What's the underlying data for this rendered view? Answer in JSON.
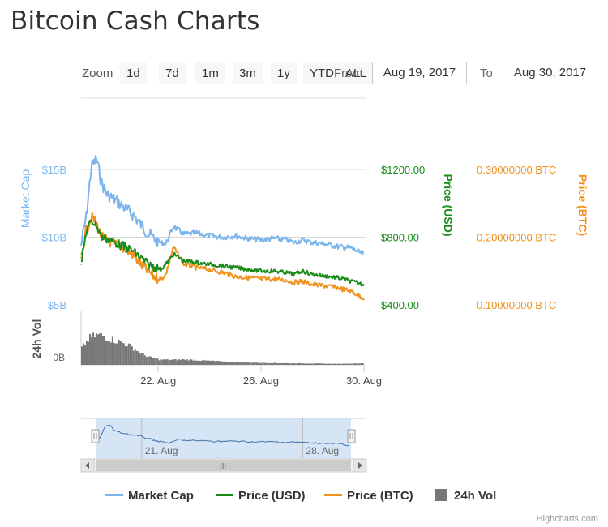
{
  "title": "Bitcoin Cash Charts",
  "range_selector": {
    "zoom_label": "Zoom",
    "buttons": [
      "1d",
      "7d",
      "1m",
      "3m",
      "1y",
      "YTD",
      "ALL"
    ],
    "from_label": "From",
    "from_value": "Aug 19, 2017",
    "to_label": "To",
    "to_value": "Aug 30, 2017"
  },
  "colors": {
    "market_cap": "#7cb5ec",
    "price_usd": "#1a8c1a",
    "price_btc": "#f0921d",
    "volume": "#777777",
    "grid": "#d8d8d8",
    "navigator_mask": "#cfe0f3"
  },
  "chart_data": {
    "type": "line",
    "title": "Bitcoin Cash Charts",
    "x_range": [
      "Aug 19, 2017",
      "Aug 30, 2017"
    ],
    "x_tick_labels": [
      "22. Aug",
      "26. Aug",
      "30. Aug"
    ],
    "x_ticks": [
      22,
      26,
      30
    ],
    "axes": {
      "market_cap": {
        "label": "Market Cap",
        "ticks": [
          "$5B",
          "$10B",
          "$15B"
        ],
        "tick_values": [
          5,
          10,
          15
        ],
        "unit": "B USD",
        "range": [
          5,
          15
        ]
      },
      "price_usd": {
        "label": "Price (USD)",
        "ticks": [
          "$400.00",
          "$800.00",
          "$1200.00"
        ],
        "tick_values": [
          400,
          800,
          1200
        ],
        "range": [
          400,
          1200
        ]
      },
      "price_btc": {
        "label": "Price (BTC)",
        "ticks": [
          "0.10000000 BTC",
          "0.20000000 BTC",
          "0.30000000 BTC"
        ],
        "tick_values": [
          0.1,
          0.2,
          0.3
        ],
        "range": [
          0.1,
          0.3
        ]
      },
      "volume": {
        "label": "24h Vol",
        "ticks": [
          "0B"
        ]
      }
    },
    "grid": true,
    "legend_position": "bottom",
    "series": [
      {
        "name": "Market Cap",
        "axis": "market_cap",
        "x": [
          19.0,
          19.2,
          19.4,
          19.6,
          19.8,
          20.0,
          20.3,
          20.6,
          21.0,
          21.3,
          21.6,
          21.9,
          22.1,
          22.3,
          22.6,
          23.0,
          23.5,
          24.0,
          24.5,
          25.0,
          25.5,
          26.0,
          26.5,
          27.0,
          27.3,
          27.6,
          28.0,
          28.5,
          29.0,
          29.5,
          30.0
        ],
        "values": [
          9.4,
          11.5,
          15.2,
          15.8,
          14.0,
          13.2,
          12.8,
          12.3,
          11.7,
          11.0,
          10.3,
          9.8,
          9.6,
          9.5,
          10.8,
          10.2,
          10.3,
          10.1,
          10.0,
          10.1,
          9.9,
          9.8,
          9.9,
          9.8,
          9.6,
          9.8,
          9.6,
          9.5,
          9.3,
          9.2,
          8.7
        ]
      },
      {
        "name": "Price (USD)",
        "axis": "price_usd",
        "x": [
          19.0,
          19.2,
          19.4,
          19.6,
          19.8,
          20.0,
          20.3,
          20.6,
          21.0,
          21.3,
          21.6,
          21.9,
          22.1,
          22.3,
          22.6,
          23.0,
          23.5,
          24.0,
          24.5,
          25.0,
          25.5,
          26.0,
          26.5,
          27.0,
          27.3,
          27.6,
          28.0,
          28.5,
          29.0,
          29.5,
          30.0
        ],
        "values": [
          640,
          830,
          900,
          870,
          800,
          790,
          770,
          750,
          720,
          680,
          640,
          620,
          610,
          640,
          700,
          660,
          650,
          640,
          630,
          620,
          610,
          600,
          600,
          590,
          580,
          600,
          580,
          570,
          560,
          540,
          520
        ]
      },
      {
        "name": "Price (BTC)",
        "axis": "price_btc",
        "x": [
          19.0,
          19.2,
          19.4,
          19.6,
          19.8,
          20.0,
          20.3,
          20.6,
          21.0,
          21.3,
          21.6,
          21.9,
          22.1,
          22.3,
          22.6,
          23.0,
          23.5,
          24.0,
          24.5,
          25.0,
          25.5,
          26.0,
          26.5,
          27.0,
          27.3,
          27.6,
          28.0,
          28.5,
          29.0,
          29.5,
          30.0
        ],
        "values": [
          0.17,
          0.21,
          0.23,
          0.22,
          0.2,
          0.195,
          0.19,
          0.185,
          0.175,
          0.16,
          0.15,
          0.14,
          0.138,
          0.145,
          0.185,
          0.16,
          0.155,
          0.152,
          0.148,
          0.142,
          0.14,
          0.138,
          0.138,
          0.136,
          0.133,
          0.135,
          0.13,
          0.128,
          0.125,
          0.12,
          0.11
        ]
      },
      {
        "name": "24h Vol",
        "axis": "volume",
        "x": [
          19.0,
          19.3,
          19.6,
          19.9,
          20.2,
          20.5,
          20.8,
          21.1,
          21.4,
          21.7,
          22.0,
          22.5,
          23.0,
          23.5,
          24.0,
          24.5,
          25.0,
          26.0,
          27.0,
          28.0,
          29.0,
          30.0
        ],
        "values": [
          0.5,
          0.8,
          0.9,
          0.85,
          0.75,
          0.68,
          0.6,
          0.45,
          0.3,
          0.22,
          0.16,
          0.15,
          0.16,
          0.14,
          0.12,
          0.1,
          0.08,
          0.06,
          0.05,
          0.04,
          0.03,
          0.05
        ]
      }
    ],
    "navigator": {
      "x_tick_labels": [
        "21. Aug",
        "28. Aug"
      ],
      "x_ticks": [
        21,
        28
      ]
    }
  },
  "legend": {
    "items": [
      {
        "label": "Market Cap"
      },
      {
        "label": "Price (USD)"
      },
      {
        "label": "Price (BTC)"
      },
      {
        "label": "24h Vol"
      }
    ]
  },
  "credits": "Highcharts.com",
  "scrollbar_grip": "III"
}
